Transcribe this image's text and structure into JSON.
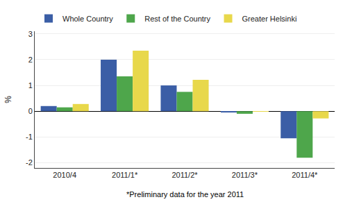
{
  "chart_data": {
    "type": "bar",
    "ylabel": "%",
    "categories": [
      "2010/4",
      "2011/1*",
      "2011/2*",
      "2011/3*",
      "2011/4*"
    ],
    "series": [
      {
        "name": "Whole Country",
        "color": "#3b5ea6",
        "values": [
          0.2,
          2.0,
          1.0,
          -0.05,
          -1.05
        ]
      },
      {
        "name": "Rest of the Country",
        "color": "#4ea64b",
        "values": [
          0.15,
          1.35,
          0.75,
          -0.1,
          -1.8
        ]
      },
      {
        "name": "Greater Helsinki",
        "color": "#e8d84b",
        "values": [
          0.28,
          2.35,
          1.22,
          -0.02,
          -0.28
        ]
      }
    ],
    "ylim": [
      -2.2,
      3.1
    ],
    "yticks": [
      -2,
      -1,
      0,
      1,
      2,
      3
    ],
    "grid": true,
    "legend": "top",
    "annotations": [
      "*Preliminary data for the year 2011"
    ]
  }
}
